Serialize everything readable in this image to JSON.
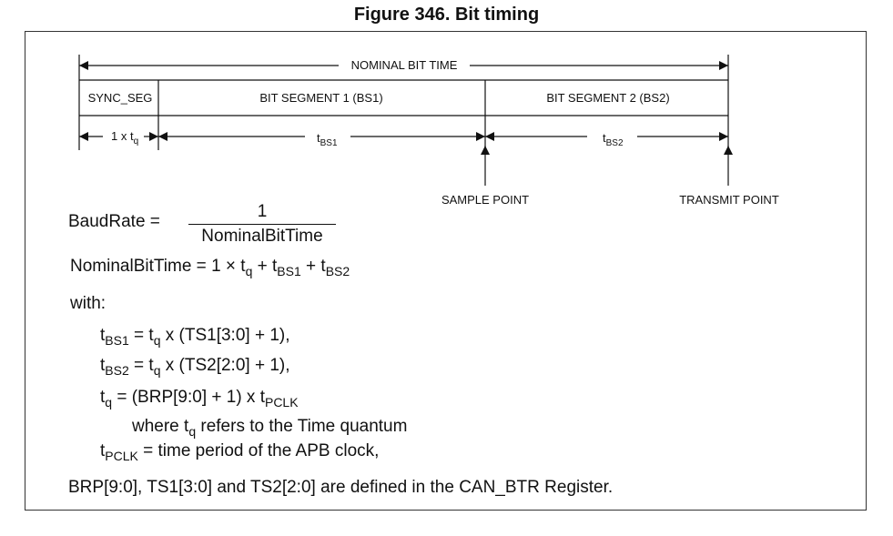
{
  "figure_title": "Figure 346. Bit timing",
  "diagram": {
    "nominal_bit_time": "NOMINAL BIT TIME",
    "segments": [
      "SYNC_SEG",
      "BIT SEGMENT 1 (BS1)",
      "BIT SEGMENT 2 (BS2)"
    ],
    "sync_len": {
      "prefix": "1 x t",
      "sub": "q"
    },
    "tbs1": {
      "base": "t",
      "sub": "BS1"
    },
    "tbs2": {
      "base": "t",
      "sub": "BS2"
    },
    "sample_point": "SAMPLE POINT",
    "transmit_point": "TRANSMIT POINT"
  },
  "formulas": {
    "baud_lhs": "BaudRate",
    "eq_sign": "=",
    "baud_num": "1",
    "baud_den": "NominalBitTime",
    "nbt_lhs": "NominalBitTime",
    "nbt_rhs_prefix": "1 × t",
    "nbt_q": "q",
    "nbt_plus1": " + t",
    "nbt_bs1": "BS1",
    "nbt_plus2": " + t",
    "nbt_bs2": "BS2",
    "with": "with:",
    "tbs1_base": "t",
    "tbs1_sub": "BS1",
    "tbs1_eq": " = t",
    "tbs1_q": "q",
    "tbs1_rest": " x (TS1[3:0] + 1),",
    "tbs2_base": "t",
    "tbs2_sub": "BS2",
    "tbs2_eq": " = t",
    "tbs2_q": "q",
    "tbs2_rest": " x (TS2[2:0] + 1),",
    "tq_base": "t",
    "tq_sub": "q",
    "tq_rest": " = (BRP[9:0] + 1) x t",
    "tq_pclk": "PCLK",
    "where_prefix": "where t",
    "where_q": "q",
    "where_rest": " refers to the Time quantum",
    "tpclk_base": "t",
    "tpclk_sub": "PCLK",
    "tpclk_rest": " = time period of the APB clock,",
    "footer": "BRP[9:0], TS1[3:0] and TS2[2:0] are defined in the CAN_BTR Register."
  }
}
